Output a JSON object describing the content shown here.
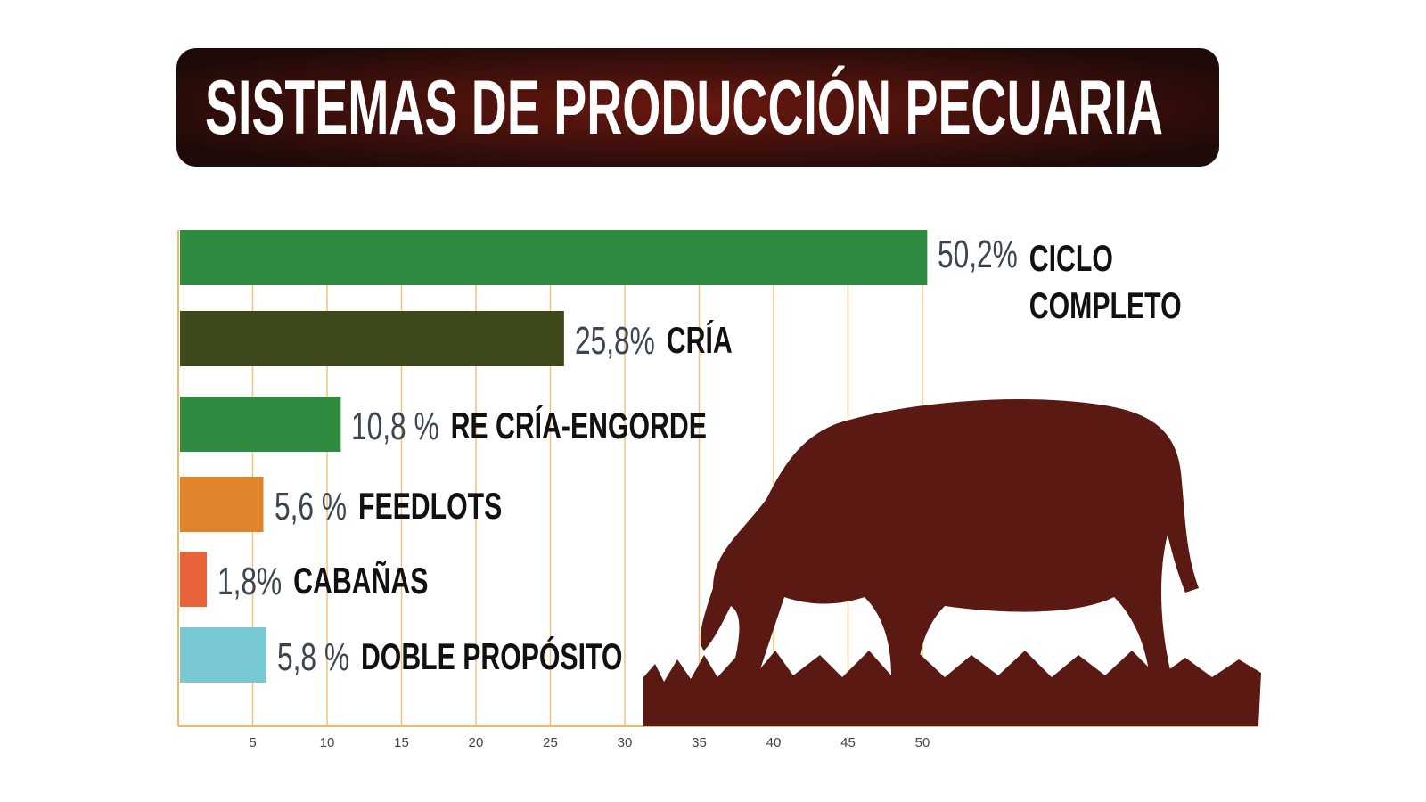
{
  "chart_data": {
    "type": "bar",
    "orientation": "horizontal",
    "title": "SISTEMAS DE PRODUCCIÓN PECUARIA",
    "categories": [
      "CICLO COMPLETO",
      "CRÍA",
      "RE CRÍA-ENGORDE",
      "FEEDLOTS",
      "CABAÑAS",
      "DOBLE PROPÓSITO"
    ],
    "values": [
      50.2,
      25.8,
      10.8,
      5.6,
      1.8,
      5.8
    ],
    "value_labels": [
      "50,2%",
      "25,8%",
      "10,8 %",
      "5,6 %",
      "1,8%",
      "5,8 %"
    ],
    "colors": [
      "#2f8b3f",
      "#3e4a1c",
      "#2f8b3f",
      "#e0832a",
      "#e8623a",
      "#78c9d3"
    ],
    "xlim": [
      0,
      50
    ],
    "xticks": [
      5,
      10,
      15,
      20,
      25,
      30,
      35,
      40,
      45,
      50
    ],
    "grid": true
  }
}
